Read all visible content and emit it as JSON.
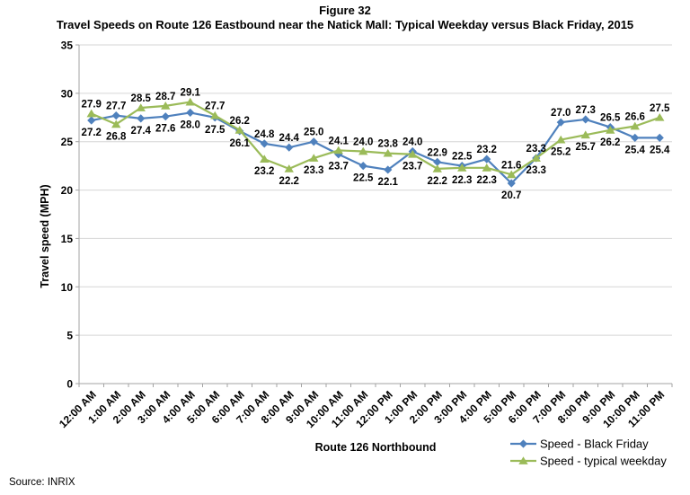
{
  "figure": {
    "title": "Figure 32",
    "subtitle": "Travel Speeds on Route 126 Eastbound near the Natick Mall: Typical Weekday versus Black Friday, 2015",
    "source": "Source: INRIX"
  },
  "colors": {
    "black_friday_blue": "#4F81BD",
    "typical_weekday_green": "#9BBB59",
    "gridline": "#D6D6D6",
    "axis": "#A3A3A3",
    "text": "#000000"
  },
  "chart_data": {
    "type": "line",
    "title": "Travel Speeds on Route 126 Eastbound near the Natick Mall: Typical Weekday versus Black Friday, 2015",
    "xlabel": "Route 126 Northbound",
    "ylabel": "Travel speed (MPH)",
    "ylim": [
      0,
      35
    ],
    "ytick_step": 5,
    "grid": true,
    "legend_position": "bottom-right",
    "data_labels": true,
    "categories": [
      "12:00 AM",
      "1:00 AM",
      "2:00 AM",
      "3:00 AM",
      "4:00 AM",
      "5:00 AM",
      "6:00 AM",
      "7:00 AM",
      "8:00 AM",
      "9:00 AM",
      "10:00 AM",
      "11:00 AM",
      "12:00 PM",
      "1:00 PM",
      "2:00 PM",
      "3:00 PM",
      "4:00 PM",
      "5:00 PM",
      "6:00 PM",
      "7:00 PM",
      "8:00 PM",
      "9:00 PM",
      "10:00 PM",
      "11:00 PM"
    ],
    "series": [
      {
        "name": "Speed - Black Friday",
        "marker": "diamond",
        "color": "#4F81BD",
        "values": [
          27.2,
          27.7,
          27.4,
          27.6,
          28.0,
          27.5,
          26.1,
          24.8,
          24.4,
          25.0,
          23.7,
          22.5,
          22.1,
          24.0,
          22.9,
          22.5,
          23.2,
          20.7,
          23.3,
          27.0,
          27.3,
          26.5,
          25.4,
          25.4
        ]
      },
      {
        "name": "Speed - typical weekday",
        "marker": "triangle",
        "color": "#9BBB59",
        "values": [
          27.9,
          26.8,
          28.5,
          28.7,
          29.1,
          27.7,
          26.2,
          23.2,
          22.2,
          23.3,
          24.1,
          24.0,
          23.8,
          23.7,
          22.2,
          22.3,
          22.3,
          21.6,
          23.3,
          25.2,
          25.7,
          26.2,
          26.6,
          27.5
        ]
      }
    ]
  }
}
